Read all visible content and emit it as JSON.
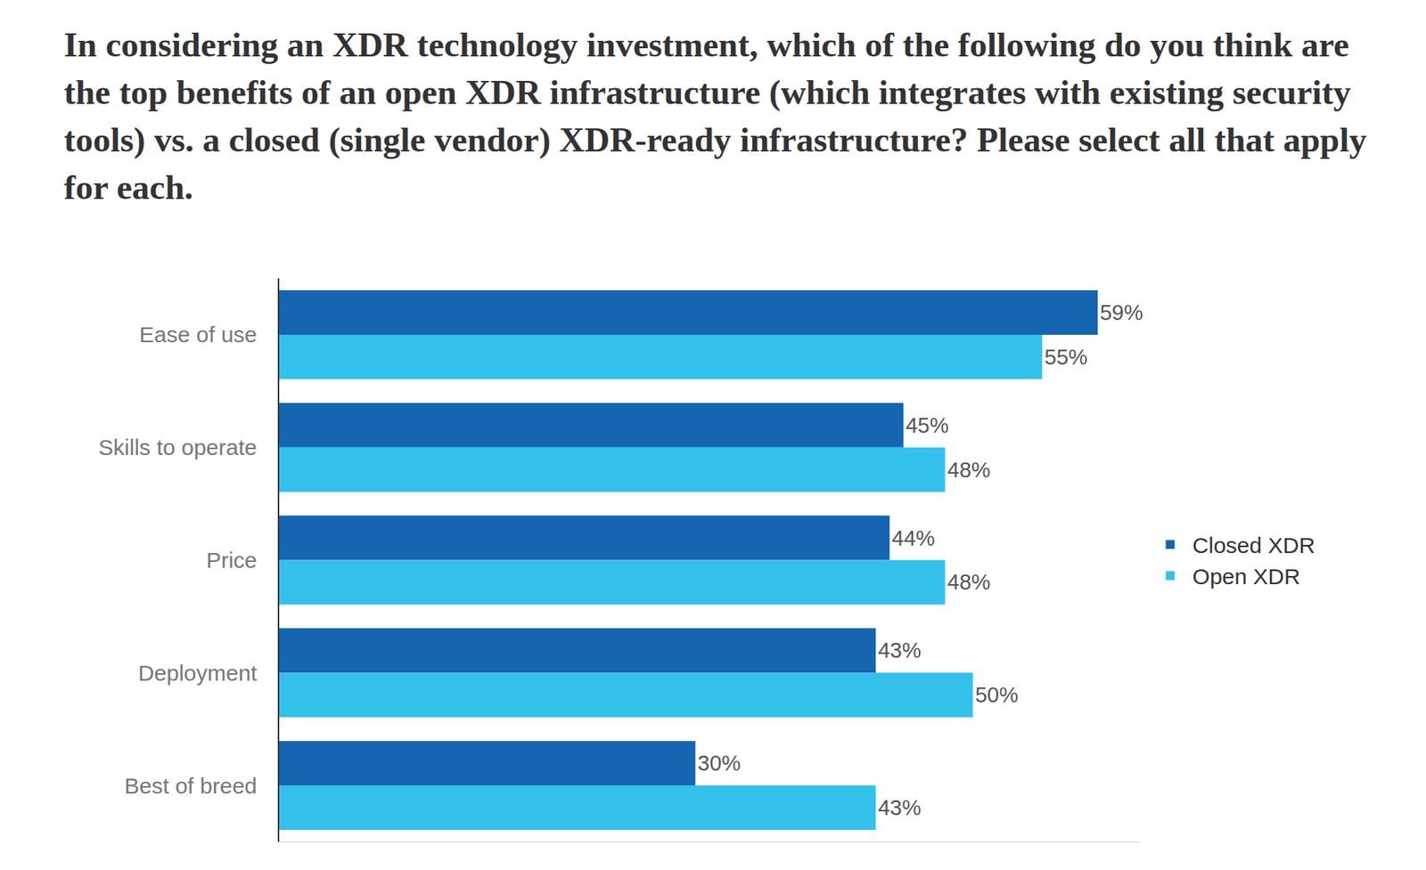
{
  "chart_data": {
    "type": "bar",
    "title": "In considering an XDR technology investment, which of the following do you think are the top benefits of an open XDR infrastructure (which integrates with existing security tools) vs. a closed (single vendor) XDR-ready infrastructure? Please select all that apply for each.",
    "orientation": "horizontal",
    "categories": [
      "Ease of use",
      "Skills to operate",
      "Price",
      "Deployment",
      "Best of breed"
    ],
    "series": [
      {
        "name": "Closed XDR",
        "color": "#1565b0",
        "values": [
          59,
          45,
          44,
          43,
          30
        ],
        "value_labels": [
          "59%",
          "45%",
          "44%",
          "43%",
          "30%"
        ]
      },
      {
        "name": "Open XDR",
        "color": "#33c1ec",
        "values": [
          55,
          48,
          48,
          50,
          43
        ],
        "value_labels": [
          "55%",
          "48%",
          "48%",
          "50%",
          "43%"
        ]
      }
    ],
    "xlim": [
      0,
      62
    ],
    "data_labels": true,
    "tick_labels": "y",
    "grid": false,
    "legend": "right"
  }
}
